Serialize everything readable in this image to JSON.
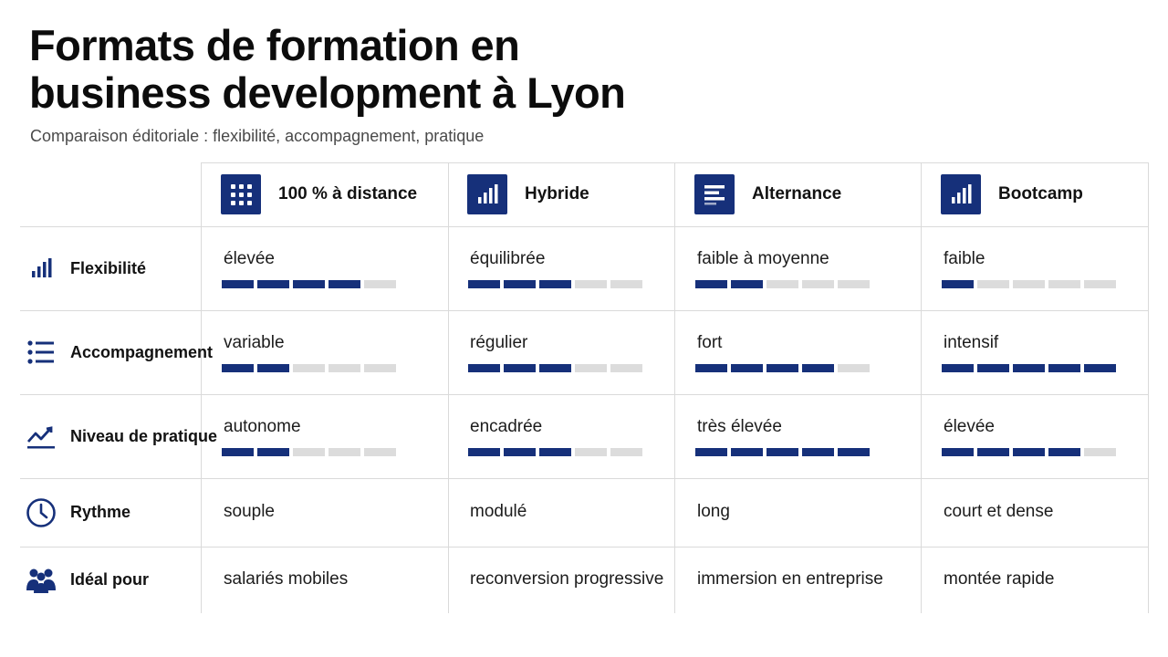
{
  "title_line1": "Formats de formation en",
  "title_line2": "business development à Lyon",
  "subtitle": "Comparaison éditoriale : flexibilité, accompagnement, pratique",
  "colors": {
    "accent": "#16307a",
    "empty": "#dcdcdc",
    "grid": "#dadada"
  },
  "columns": [
    {
      "label": "100 % à distance",
      "icon": "grid-dots-icon"
    },
    {
      "label": "Hybride",
      "icon": "bar-chart-icon"
    },
    {
      "label": "Alternance",
      "icon": "list-lines-icon"
    },
    {
      "label": "Bootcamp",
      "icon": "bar-chart-icon"
    }
  ],
  "rows": [
    {
      "label": "Flexibilité",
      "icon": "bar-chart-icon",
      "cells": [
        {
          "text": "élevée",
          "level": 4
        },
        {
          "text": "équilibrée",
          "level": 3
        },
        {
          "text": "faible à moyenne",
          "level": 2
        },
        {
          "text": "faible",
          "level": 1
        }
      ]
    },
    {
      "label": "Accompagnement",
      "icon": "list-icon",
      "cells": [
        {
          "text": "variable",
          "level": 2
        },
        {
          "text": "régulier",
          "level": 3
        },
        {
          "text": "fort",
          "level": 4
        },
        {
          "text": "intensif",
          "level": 5
        }
      ]
    },
    {
      "label": "Niveau de pratique",
      "icon": "trend-line-icon",
      "cells": [
        {
          "text": "autonome",
          "level": 2
        },
        {
          "text": "encadrée",
          "level": 3
        },
        {
          "text": "très élevée",
          "level": 5
        },
        {
          "text": "élevée",
          "level": 4
        }
      ]
    },
    {
      "label": "Rythme",
      "icon": "clock-icon",
      "cells": [
        {
          "text": "souple"
        },
        {
          "text": "modulé"
        },
        {
          "text": "long"
        },
        {
          "text": "court et dense"
        }
      ]
    },
    {
      "label": "Idéal pour",
      "icon": "people-icon",
      "cells": [
        {
          "text": "salariés mobiles"
        },
        {
          "text": "reconversion progressive"
        },
        {
          "text": "immersion en entreprise"
        },
        {
          "text": "montée rapide"
        }
      ]
    }
  ],
  "level_max": 5
}
